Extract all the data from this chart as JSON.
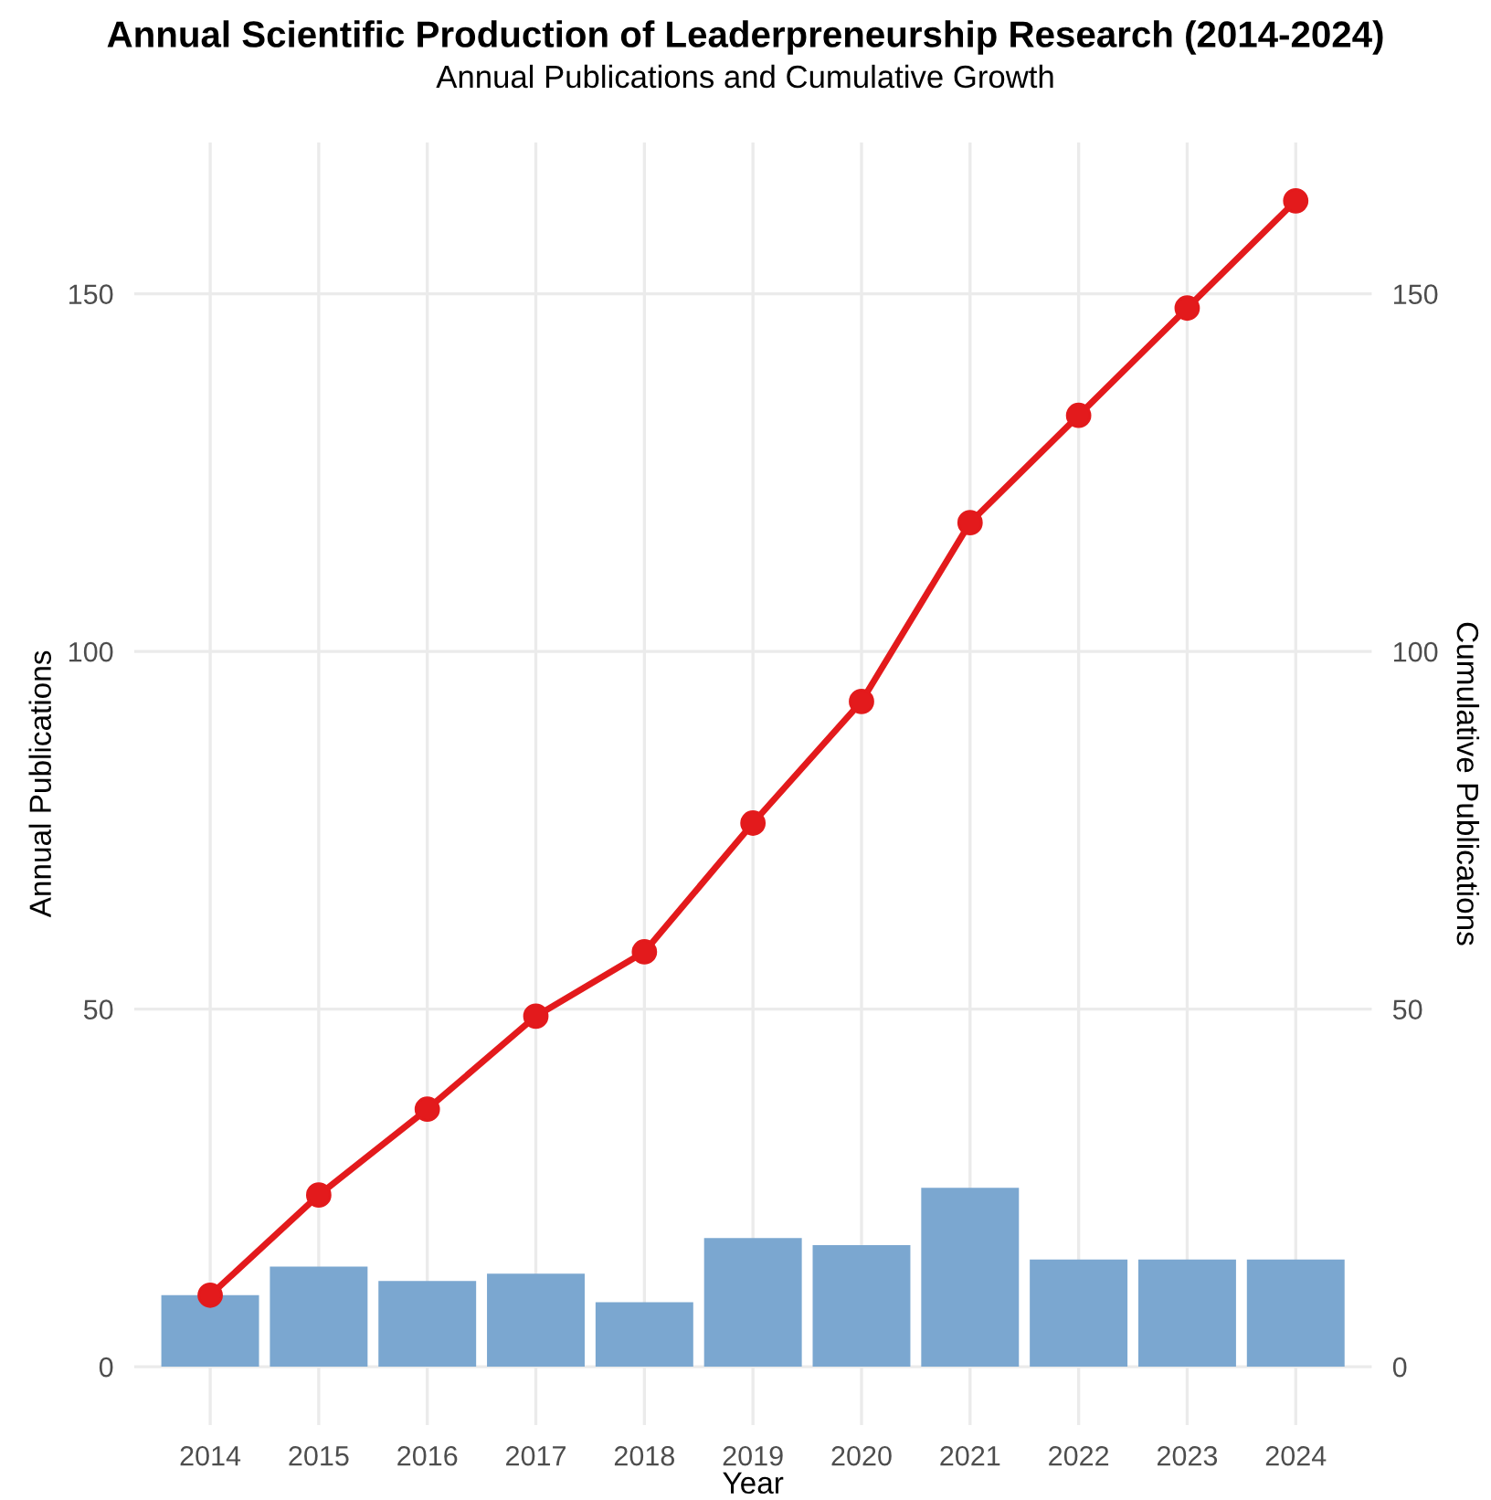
{
  "chart_data": {
    "type": "bar",
    "title": "Annual Scientific Production of Leaderpreneurship Research (2014-2024)",
    "subtitle": "Annual Publications and Cumulative Growth",
    "xlabel": "Year",
    "ylabel": "Annual Publications",
    "y2label": "Cumulative Publications",
    "categories": [
      "2014",
      "2015",
      "2016",
      "2017",
      "2018",
      "2019",
      "2020",
      "2021",
      "2022",
      "2023",
      "2024"
    ],
    "series": [
      {
        "color": "#7ba7d0",
        "values": [
          10,
          14,
          12,
          13,
          9,
          18,
          17,
          25,
          15,
          15,
          15
        ]
      },
      {
        "type": "line",
        "axis": "y2",
        "color": "#e31a1c",
        "marker": "circle",
        "values": [
          10,
          24,
          36,
          49,
          58,
          76,
          93,
          118,
          133,
          148,
          163
        ]
      }
    ],
    "ylim": [
      -8.15,
      171.15
    ],
    "yticks": [
      0,
      50,
      100,
      150
    ],
    "y2lim": [
      -8.15,
      171.15
    ],
    "y2ticks": [
      0,
      50,
      100,
      150
    ],
    "grid": true,
    "legend": false
  }
}
